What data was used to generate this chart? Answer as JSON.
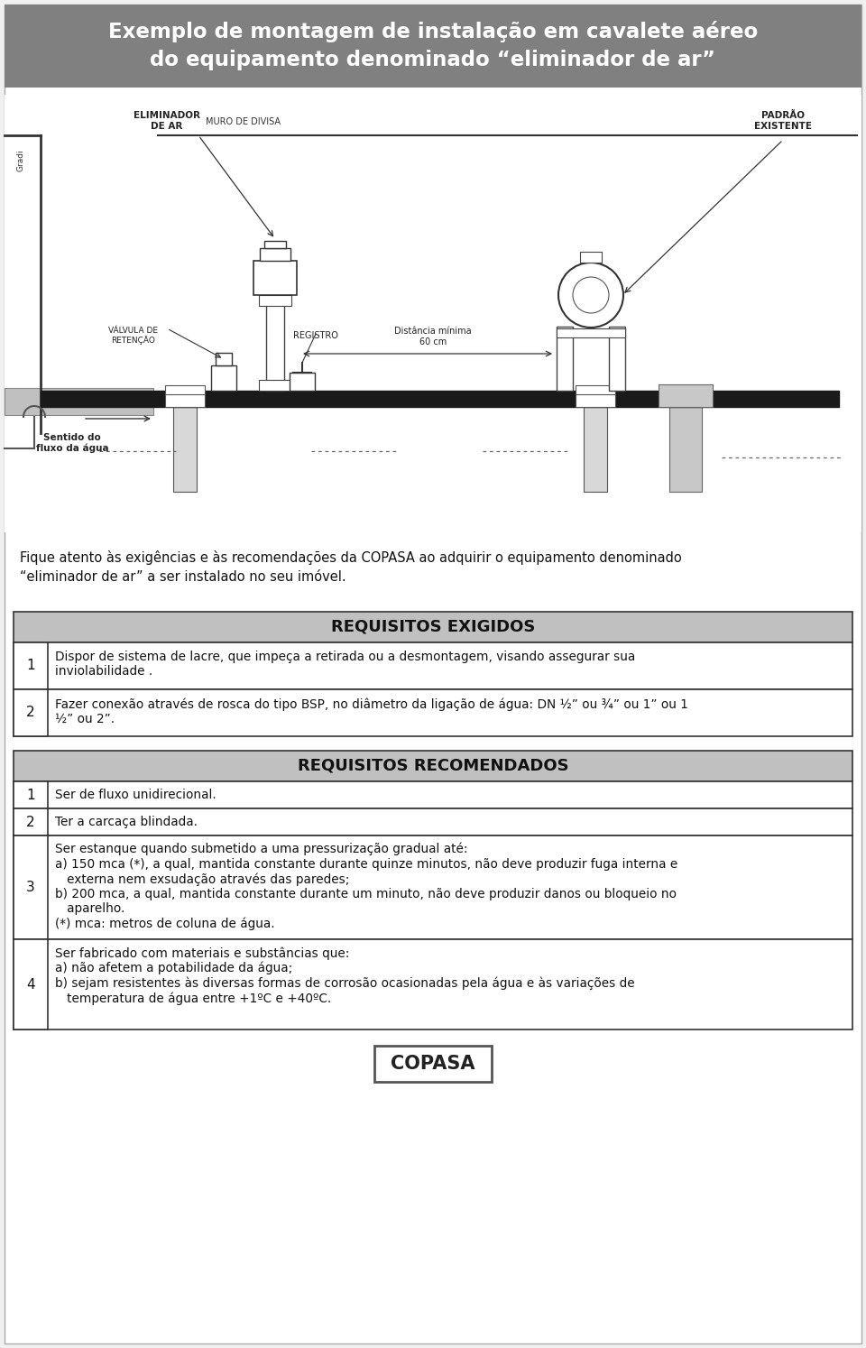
{
  "title_line1": "Exemplo de montagem de instalação em cavalete aéreo",
  "title_line2": "do equipamento denominado “eliminador de ar”",
  "title_bg": "#808080",
  "title_color": "#ffffff",
  "body_bg": "#f0f0f0",
  "header_bg": "#c0c0c0",
  "table_border": "#333333",
  "intro_text1": "Fique atento às exigências e às recomendações da COPASA ao adquirir o equipamento denominado",
  "intro_text2": "“eliminador de ar” a ser instalado no seu imóvel.",
  "req_exigidos_title": "REQUISITOS EXIGIDOS",
  "req_exigidos": [
    {
      "num": "1",
      "text": "Dispor de sistema de lacre, que impeça a retirada ou a desmontagem, visando assegurar sua\ninviolabilidade ."
    },
    {
      "num": "2",
      "text": "Fazer conexão através de rosca do tipo BSP, no diâmetro da ligação de água: DN ½” ou ¾” ou 1” ou 1\n½” ou 2”."
    }
  ],
  "req_recomendados_title": "REQUISITOS RECOMENDADOS",
  "req_recomendados": [
    {
      "num": "1",
      "text": "Ser de fluxo unidirecional."
    },
    {
      "num": "2",
      "text": "Ter a carcaça blindada."
    },
    {
      "num": "3",
      "text": "Ser estanque quando submetido a uma pressurização gradual até:\na) 150 mca (*), a qual, mantida constante durante quinze minutos, não deve produzir fuga interna e\n   externa nem exsudação através das paredes;\nb) 200 mca, a qual, mantida constante durante um minuto, não deve produzir danos ou bloqueio no\n   aparelho.\n(*) mca: metros de coluna de água."
    },
    {
      "num": "4",
      "text": "Ser fabricado com materiais e substâncias que:\na) não afetem a potabilidade da água;\nb) sejam resistentes às diversas formas de corrosão ocasionadas pela água e às variações de\n   temperatura de água entre +1ºC e +40ºC."
    }
  ],
  "copasa_logo_text": "COPASA",
  "diagram_labels": {
    "muro": "MURO DE DIVISA",
    "eliminador": "ELIMINADOR\nDE AR",
    "distancia": "Distância mínima\n60 cm",
    "padrao": "PADRÃO\nEXISTENTE",
    "valvula": "VÁLVULA DE\nRETENÇÃO",
    "registro": "REGISTRO",
    "gradi": "Gradi",
    "sentido": "Sentido do\nfluxo da água"
  }
}
